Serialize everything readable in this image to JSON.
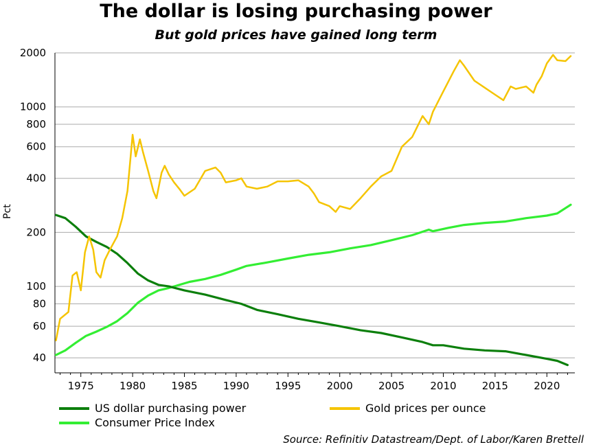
{
  "header": {
    "title": "The dollar is losing purchasing power",
    "subtitle": "But gold prices have gained long term"
  },
  "source": "Source: Refinitiv Datastream/Dept. of Labor/Karen Brettell",
  "colors": {
    "dollar": "#0c7f0c",
    "gold": "#f5c400",
    "cpi": "#33ee33",
    "grid": "#aaaaaa",
    "axis": "#000000"
  },
  "chart_data": {
    "type": "line",
    "title": "The dollar is losing purchasing power",
    "subtitle": "But gold prices have gained long term",
    "xlabel": "",
    "ylabel": "Pct",
    "y_scale": "log",
    "xlim": [
      1972.5,
      2022.7
    ],
    "ylim": [
      33,
      2000
    ],
    "x_ticks": [
      1975,
      1980,
      1985,
      1990,
      1995,
      2000,
      2005,
      2010,
      2015,
      2020
    ],
    "y_ticks": [
      40,
      60,
      80,
      100,
      200,
      400,
      600,
      800,
      1000,
      2000
    ],
    "grid": true,
    "legend_position": "bottom",
    "series": [
      {
        "name": "US dollar purchasing power",
        "color": "#0c7f0c",
        "points": [
          [
            1972.6,
            250
          ],
          [
            1973.5,
            240
          ],
          [
            1974.5,
            215
          ],
          [
            1975.5,
            190
          ],
          [
            1976.5,
            177
          ],
          [
            1977.5,
            166
          ],
          [
            1978.5,
            152
          ],
          [
            1979.5,
            135
          ],
          [
            1980.5,
            118
          ],
          [
            1981.5,
            108
          ],
          [
            1982.5,
            102
          ],
          [
            1983.5,
            100
          ],
          [
            1985,
            95
          ],
          [
            1987,
            90
          ],
          [
            1989,
            84
          ],
          [
            1990.5,
            80
          ],
          [
            1992,
            74
          ],
          [
            1994,
            70
          ],
          [
            1996,
            66
          ],
          [
            1998,
            63
          ],
          [
            2000,
            60
          ],
          [
            2002,
            57
          ],
          [
            2004,
            55
          ],
          [
            2006,
            52
          ],
          [
            2008,
            49
          ],
          [
            2009,
            47
          ],
          [
            2010,
            47
          ],
          [
            2012,
            45
          ],
          [
            2014,
            44
          ],
          [
            2016,
            43.5
          ],
          [
            2018,
            41.5
          ],
          [
            2020,
            39.5
          ],
          [
            2021,
            38.5
          ],
          [
            2022,
            36.5
          ]
        ]
      },
      {
        "name": "Gold prices per ounce",
        "color": "#f5c400",
        "points": [
          [
            1972.6,
            50
          ],
          [
            1973,
            66
          ],
          [
            1973.8,
            72
          ],
          [
            1974.2,
            115
          ],
          [
            1974.6,
            120
          ],
          [
            1975,
            95
          ],
          [
            1975.4,
            155
          ],
          [
            1975.8,
            190
          ],
          [
            1976.2,
            160
          ],
          [
            1976.5,
            120
          ],
          [
            1976.9,
            112
          ],
          [
            1977.3,
            140
          ],
          [
            1977.8,
            160
          ],
          [
            1978.5,
            190
          ],
          [
            1979,
            240
          ],
          [
            1979.5,
            340
          ],
          [
            1980,
            700
          ],
          [
            1980.3,
            530
          ],
          [
            1980.7,
            660
          ],
          [
            1981,
            560
          ],
          [
            1981.5,
            440
          ],
          [
            1982,
            340
          ],
          [
            1982.3,
            310
          ],
          [
            1982.8,
            430
          ],
          [
            1983.1,
            470
          ],
          [
            1983.5,
            420
          ],
          [
            1984,
            380
          ],
          [
            1984.5,
            350
          ],
          [
            1985,
            320
          ],
          [
            1986,
            350
          ],
          [
            1987,
            440
          ],
          [
            1988,
            460
          ],
          [
            1988.5,
            430
          ],
          [
            1989,
            380
          ],
          [
            1990,
            390
          ],
          [
            1990.5,
            400
          ],
          [
            1991,
            360
          ],
          [
            1992,
            350
          ],
          [
            1993,
            360
          ],
          [
            1994,
            385
          ],
          [
            1995,
            385
          ],
          [
            1996,
            390
          ],
          [
            1997,
            360
          ],
          [
            1997.5,
            330
          ],
          [
            1998,
            295
          ],
          [
            1999,
            280
          ],
          [
            1999.6,
            260
          ],
          [
            2000,
            280
          ],
          [
            2001,
            270
          ],
          [
            2002,
            310
          ],
          [
            2003,
            360
          ],
          [
            2004,
            410
          ],
          [
            2005,
            440
          ],
          [
            2006,
            600
          ],
          [
            2007,
            680
          ],
          [
            2008,
            890
          ],
          [
            2008.6,
            800
          ],
          [
            2009,
            940
          ],
          [
            2010,
            1220
          ],
          [
            2011,
            1580
          ],
          [
            2011.6,
            1820
          ],
          [
            2012,
            1700
          ],
          [
            2013,
            1400
          ],
          [
            2014,
            1280
          ],
          [
            2015,
            1170
          ],
          [
            2015.8,
            1090
          ],
          [
            2016.5,
            1300
          ],
          [
            2017,
            1260
          ],
          [
            2018,
            1300
          ],
          [
            2018.7,
            1200
          ],
          [
            2019,
            1330
          ],
          [
            2019.5,
            1480
          ],
          [
            2020,
            1750
          ],
          [
            2020.6,
            1950
          ],
          [
            2021,
            1820
          ],
          [
            2021.8,
            1800
          ],
          [
            2022.3,
            1920
          ]
        ]
      },
      {
        "name": "Consumer Price Index",
        "color": "#33ee33",
        "points": [
          [
            1972.6,
            41.5
          ],
          [
            1973.5,
            44
          ],
          [
            1974.5,
            48.5
          ],
          [
            1975.5,
            53
          ],
          [
            1976.5,
            56
          ],
          [
            1977.5,
            59.5
          ],
          [
            1978.5,
            64
          ],
          [
            1979.5,
            71
          ],
          [
            1980.5,
            81
          ],
          [
            1981.5,
            89
          ],
          [
            1982.5,
            95
          ],
          [
            1983.5,
            98
          ],
          [
            1984.5,
            102
          ],
          [
            1985.5,
            106
          ],
          [
            1987,
            110
          ],
          [
            1988.5,
            116
          ],
          [
            1990,
            124
          ],
          [
            1991,
            130
          ],
          [
            1993,
            136
          ],
          [
            1995,
            143
          ],
          [
            1997,
            150
          ],
          [
            1999,
            155
          ],
          [
            2001,
            163
          ],
          [
            2003,
            170
          ],
          [
            2005,
            181
          ],
          [
            2007,
            193
          ],
          [
            2008.6,
            207
          ],
          [
            2009,
            203
          ],
          [
            2010.5,
            212
          ],
          [
            2012,
            220
          ],
          [
            2014,
            226
          ],
          [
            2016,
            230
          ],
          [
            2018,
            240
          ],
          [
            2020,
            248
          ],
          [
            2021,
            255
          ],
          [
            2022.3,
            285
          ]
        ]
      }
    ]
  }
}
